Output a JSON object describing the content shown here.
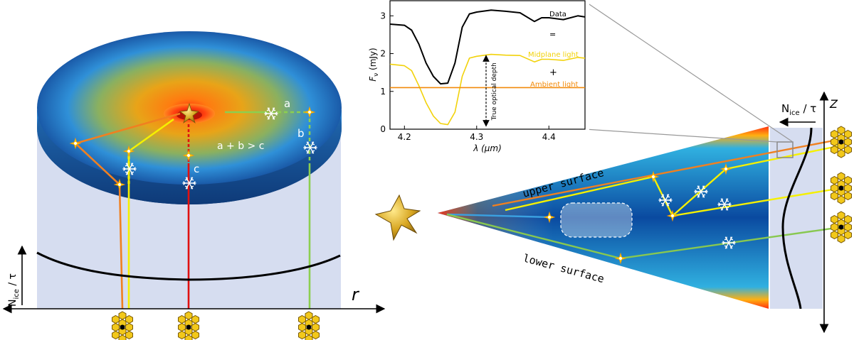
{
  "left_panel": {
    "r_axis_label": "r",
    "y_axis_label_base": "N",
    "y_axis_label_sub": "ice",
    "y_axis_label_tail": " / τ",
    "path_labels": {
      "a": "a",
      "b": "b",
      "c": "c"
    },
    "inequality": "a + b > c"
  },
  "right_panel": {
    "upper_surface": "upper surface",
    "lower_surface": "lower surface",
    "z_axis_label": "Z",
    "n_ice_label_base": "N",
    "n_ice_label_sub": "ice",
    "n_ice_label_tail": " / τ"
  },
  "inset_chart": {
    "chart_data": {
      "type": "line",
      "xlabel": "λ (μm)",
      "ylabel_base": "F",
      "ylabel_sub": "ν",
      "ylabel_unit": " (mJy)",
      "xlim": [
        4.18,
        4.45
      ],
      "ylim": [
        0,
        3.4
      ],
      "xticks": [
        4.2,
        4.3,
        4.4
      ],
      "yticks": [
        0,
        1,
        2,
        3
      ],
      "xtick_labels": [
        "4.2",
        "4.3",
        "4.4"
      ],
      "ytick_labels": [
        "0",
        "1",
        "2",
        "3"
      ],
      "series": [
        {
          "name": "Data",
          "color": "#000000",
          "x": [
            4.18,
            4.2,
            4.21,
            4.22,
            4.23,
            4.24,
            4.25,
            4.26,
            4.27,
            4.28,
            4.29,
            4.3,
            4.32,
            4.34,
            4.36,
            4.38,
            4.39,
            4.4,
            4.42,
            4.44,
            4.45
          ],
          "y": [
            2.78,
            2.75,
            2.62,
            2.25,
            1.75,
            1.4,
            1.2,
            1.22,
            1.75,
            2.7,
            3.05,
            3.1,
            3.15,
            3.12,
            3.08,
            2.85,
            2.95,
            2.95,
            2.9,
            3.0,
            2.97
          ]
        },
        {
          "name": "Midplane light",
          "color": "#f2d20a",
          "x": [
            4.18,
            4.2,
            4.21,
            4.22,
            4.23,
            4.24,
            4.25,
            4.26,
            4.27,
            4.28,
            4.29,
            4.3,
            4.32,
            4.34,
            4.36,
            4.38,
            4.39,
            4.4,
            4.42,
            4.44,
            4.45
          ],
          "y": [
            1.72,
            1.68,
            1.55,
            1.15,
            0.7,
            0.35,
            0.15,
            0.12,
            0.45,
            1.4,
            1.88,
            1.93,
            1.98,
            1.96,
            1.95,
            1.78,
            1.85,
            1.85,
            1.82,
            1.9,
            1.88
          ]
        },
        {
          "name": "Ambient light",
          "color": "#f28a0a",
          "x": [
            4.18,
            4.45
          ],
          "y": [
            1.1,
            1.1
          ]
        }
      ],
      "annotations": {
        "equals": "=",
        "plus": "+",
        "depth": "True optical depth"
      }
    }
  }
}
